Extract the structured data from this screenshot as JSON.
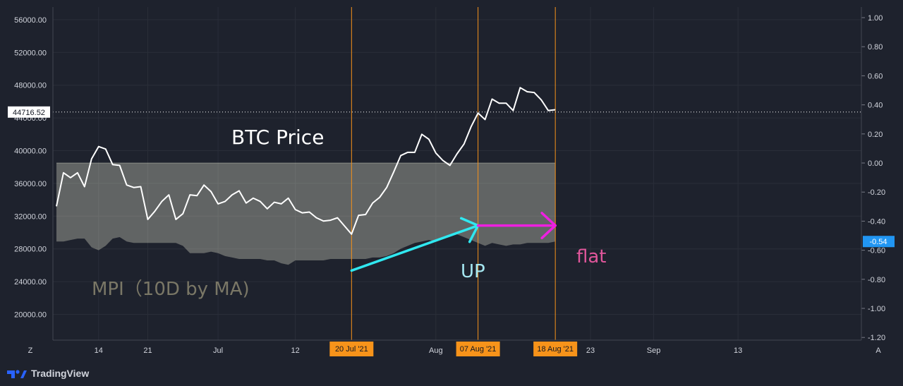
{
  "chart_data": {
    "type": "line",
    "title": "",
    "x_axis": {
      "tick_labels": [
        "14",
        "21",
        "Jul",
        "12",
        "Aug",
        "23",
        "Sep",
        "13"
      ]
    },
    "y_left": {
      "ylim": [
        17000,
        58000
      ],
      "tick_labels": [
        "56000.00",
        "52000.00",
        "48000.00",
        "44000.00",
        "40000.00",
        "36000.00",
        "32000.00",
        "28000.00",
        "24000.00",
        "20000.00"
      ]
    },
    "y_right": {
      "ylim": [
        -1.2,
        1.05
      ],
      "tick_labels": [
        "1.00",
        "0.80",
        "0.60",
        "0.40",
        "0.20",
        "0.00",
        "-0.20",
        "-0.40",
        "-0.60",
        "-0.80",
        "-1.00",
        "-1.20"
      ]
    },
    "series": [
      {
        "name": "BTC Price",
        "color": "#ffffff",
        "x_start_date": "2021-06-08",
        "values": [
          33200,
          37300,
          36700,
          37300,
          35600,
          39000,
          40500,
          40200,
          38300,
          38200,
          35800,
          35500,
          35600,
          31600,
          32600,
          33800,
          34600,
          31600,
          32300,
          34600,
          34500,
          35800,
          35000,
          33500,
          33800,
          34600,
          35100,
          33600,
          34200,
          33800,
          32900,
          33700,
          33500,
          34200,
          32800,
          32400,
          32500,
          31800,
          31400,
          31500,
          31800,
          30800,
          29800,
          32100,
          32200,
          33600,
          34300,
          35500,
          37400,
          39400,
          39800,
          39800,
          42000,
          41400,
          39700,
          38800,
          38200,
          39600,
          40800,
          42900,
          44600,
          43800,
          46300,
          45800,
          45800,
          44900,
          47700,
          47200,
          47100,
          46200,
          44900,
          45000
        ]
      },
      {
        "name": "MPI (10D by MA)",
        "color": "#ffffe6",
        "upper_value": 0.0,
        "values": [
          -0.54,
          -0.54,
          -0.53,
          -0.52,
          -0.52,
          -0.58,
          -0.6,
          -0.57,
          -0.52,
          -0.51,
          -0.54,
          -0.55,
          -0.55,
          -0.55,
          -0.55,
          -0.55,
          -0.55,
          -0.55,
          -0.57,
          -0.62,
          -0.62,
          -0.62,
          -0.61,
          -0.62,
          -0.64,
          -0.65,
          -0.66,
          -0.66,
          -0.66,
          -0.66,
          -0.67,
          -0.67,
          -0.69,
          -0.7,
          -0.67,
          -0.67,
          -0.67,
          -0.67,
          -0.67,
          -0.66,
          -0.66,
          -0.66,
          -0.66,
          -0.66,
          -0.66,
          -0.65,
          -0.65,
          -0.64,
          -0.62,
          -0.59,
          -0.57,
          -0.55,
          -0.54,
          -0.53,
          -0.54,
          -0.52,
          -0.5,
          -0.49,
          -0.51,
          -0.53,
          -0.55,
          -0.57,
          -0.55,
          -0.56,
          -0.57,
          -0.56,
          -0.56,
          -0.55,
          -0.55,
          -0.55,
          -0.55,
          -0.54
        ]
      }
    ],
    "current_price_label": "44716.52",
    "current_mpi_label": "-0.54",
    "vertical_markers": [
      {
        "label": "20 Jul '21",
        "date": "2021-07-20",
        "color": "#f7931a"
      },
      {
        "label": "07 Aug '21",
        "date": "2021-08-07",
        "color": "#f7931a"
      },
      {
        "label": "18 Aug '21",
        "date": "2021-08-18",
        "color": "#f7931a"
      }
    ],
    "annotations": [
      {
        "text": "BTC Price",
        "color": "#ffffff"
      },
      {
        "text": "MPI（10D by MA)",
        "color": "#7a7766"
      },
      {
        "text": "UP",
        "color": "#a6e8f2",
        "arrow_color": "#30e8f0",
        "from_date": "2021-07-20",
        "to_date": "2021-08-07",
        "from_mpi": -0.74,
        "to_mpi": -0.43
      },
      {
        "text": "flat",
        "color": "#e0569b",
        "arrow_color": "#ee1fe0",
        "from_date": "2021-08-07",
        "to_date": "2021-08-18",
        "from_mpi": -0.43,
        "to_mpi": -0.43
      }
    ],
    "grid": true,
    "crosshair_mode_labels": {
      "left": "Z",
      "right": "A"
    }
  },
  "branding": {
    "name": "TradingView"
  },
  "colors": {
    "background": "#1e222d",
    "grid": "#2a2e39",
    "axis_text": "#d1d4dc",
    "price_tag_bg": "#ffffff",
    "mpi_tag_bg": "#2196f3",
    "marker": "#f7931a"
  }
}
